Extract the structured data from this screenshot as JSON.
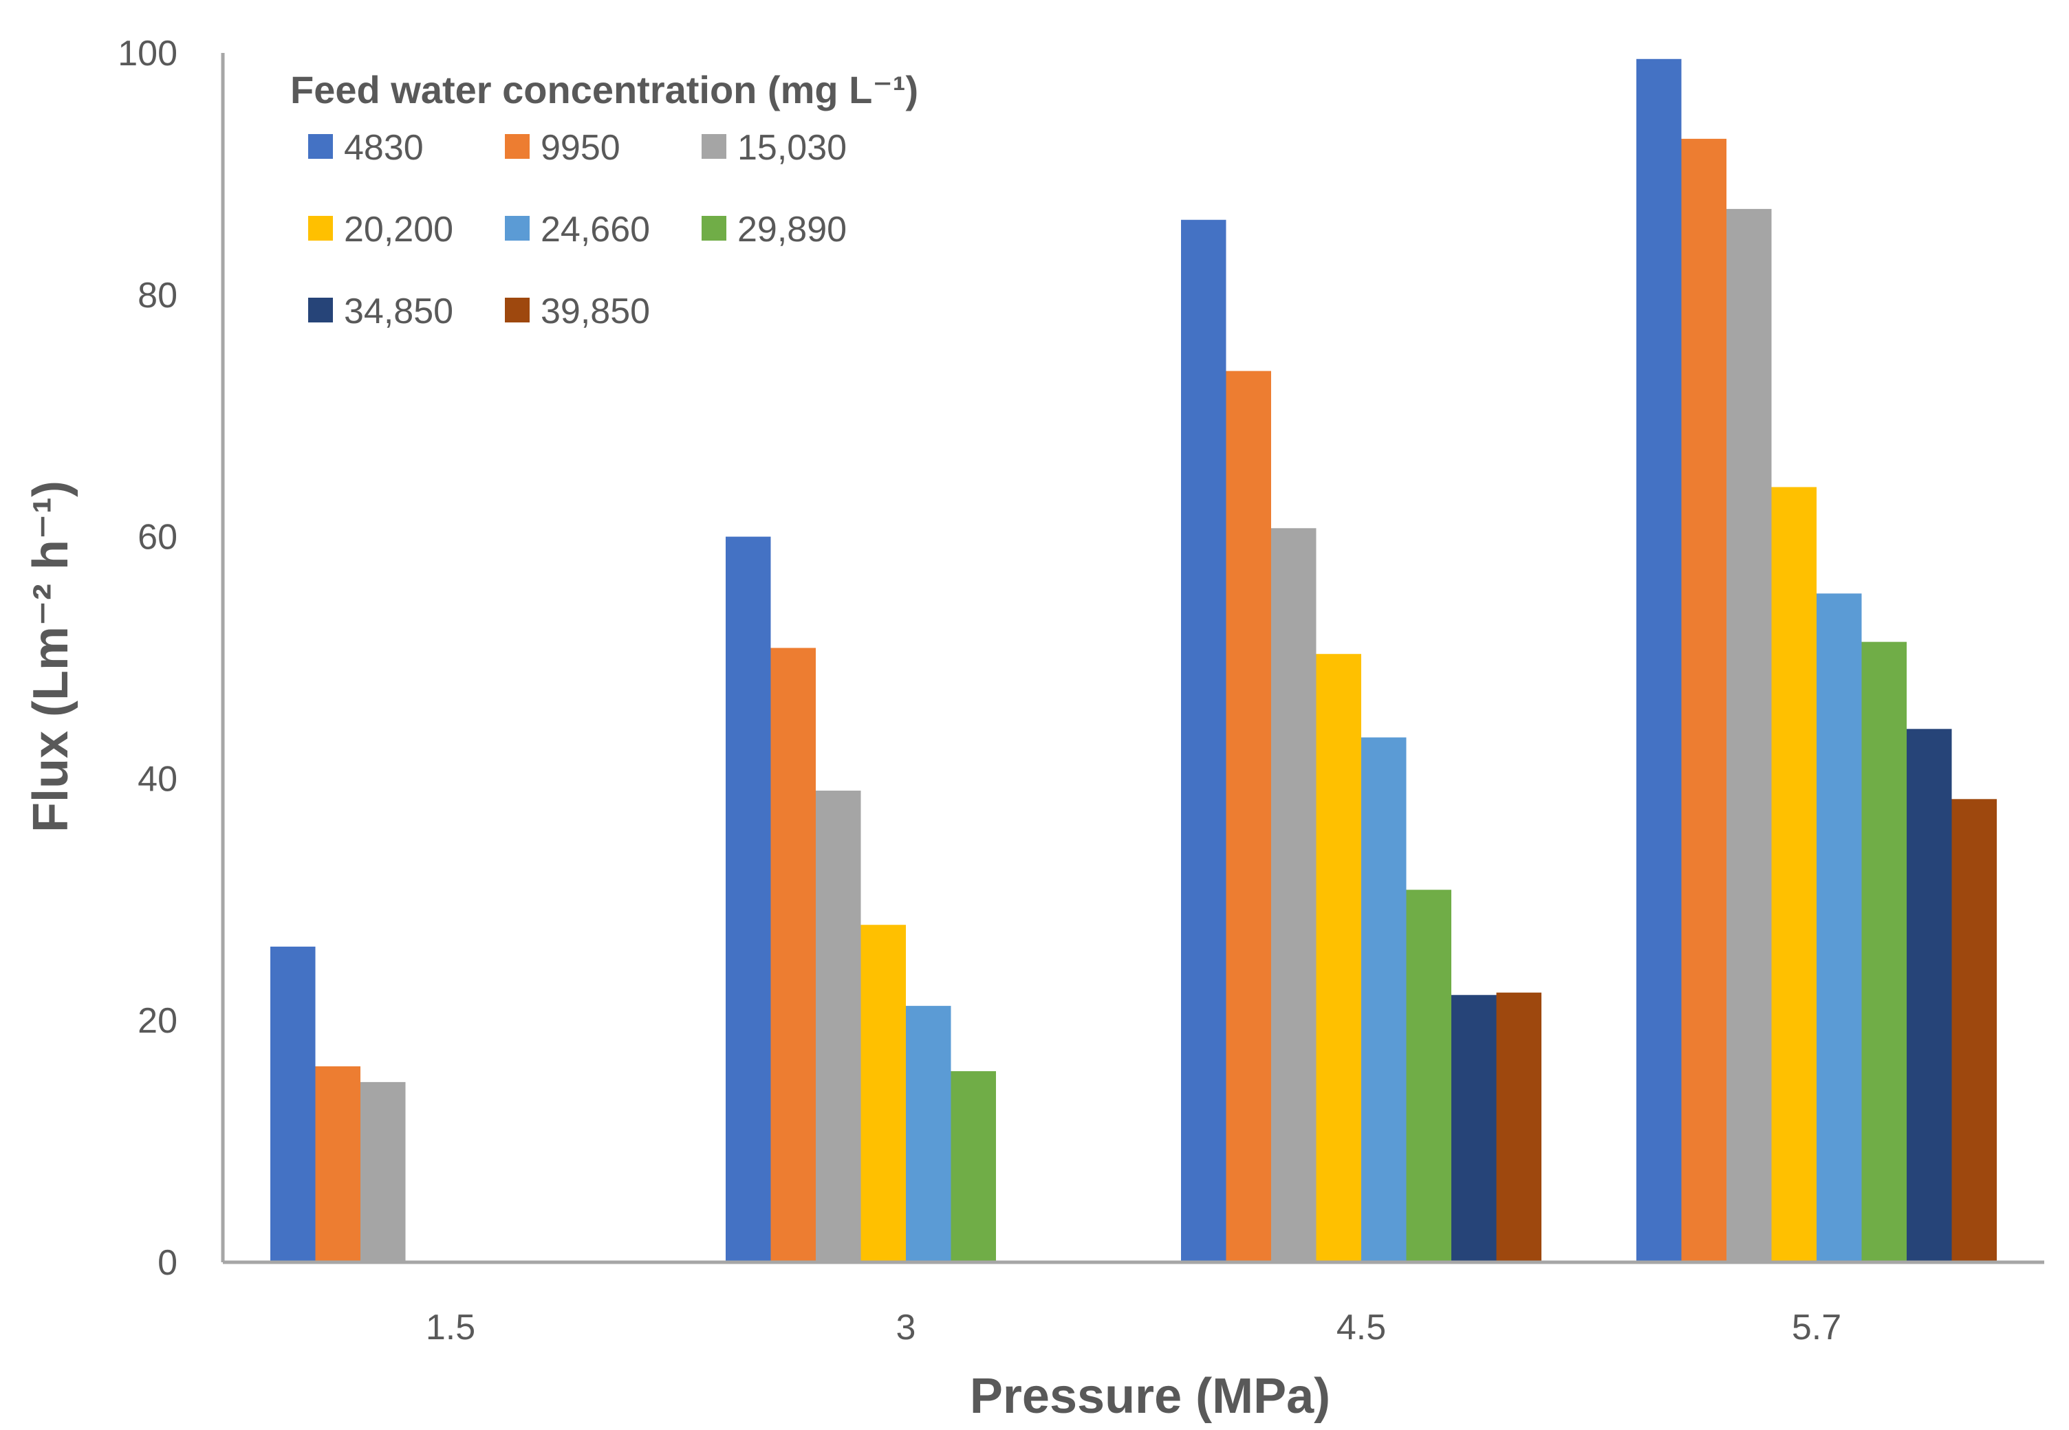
{
  "chart_data": {
    "type": "bar",
    "title": "",
    "xlabel": "Pressure (MPa)",
    "ylabel": "Flux  (Lm⁻² h⁻¹)",
    "ylim": [
      0,
      100
    ],
    "yticks": [
      0,
      20,
      40,
      60,
      80,
      100
    ],
    "grid": false,
    "categories": [
      "1.5",
      "3",
      "4.5",
      "5.7"
    ],
    "legend": {
      "title": "Feed water concentration (mg L⁻¹)",
      "placement": "top-left"
    },
    "series": [
      {
        "name": "4830",
        "color": "#4472C4",
        "values": [
          26.1,
          60.0,
          86.2,
          99.5
        ]
      },
      {
        "name": "9950",
        "color": "#ED7D31",
        "values": [
          16.2,
          50.8,
          73.7,
          92.9
        ]
      },
      {
        "name": "15,030",
        "color": "#A5A5A5",
        "values": [
          14.9,
          39.0,
          60.7,
          87.1
        ]
      },
      {
        "name": "20,200",
        "color": "#FFC000",
        "values": [
          null,
          27.9,
          50.3,
          64.1
        ]
      },
      {
        "name": "24,660",
        "color": "#5B9BD5",
        "values": [
          null,
          21.2,
          43.4,
          55.3
        ]
      },
      {
        "name": "29,890",
        "color": "#70AD47",
        "values": [
          null,
          15.8,
          30.8,
          51.3
        ]
      },
      {
        "name": "34,850",
        "color": "#264478",
        "values": [
          null,
          null,
          22.1,
          44.1
        ]
      },
      {
        "name": "39,850",
        "color": "#9E480E",
        "values": [
          null,
          null,
          22.3,
          38.3
        ]
      }
    ]
  }
}
